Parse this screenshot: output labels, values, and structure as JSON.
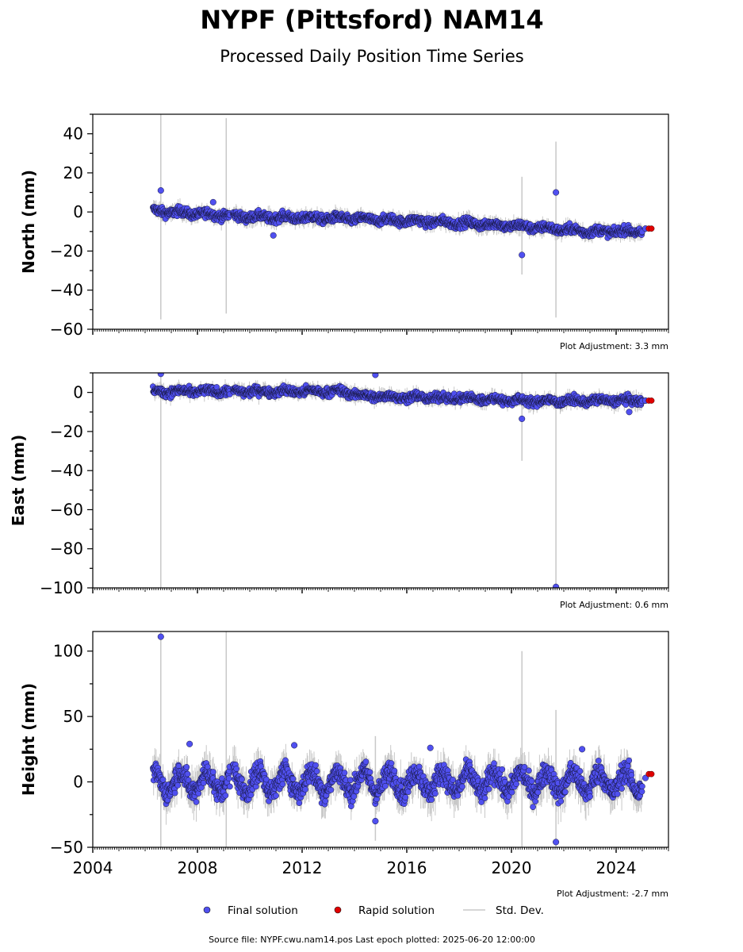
{
  "title": "NYPF (Pittsford) NAM14",
  "subtitle": "Processed Daily Position Time Series",
  "legend": {
    "final": "Final solution",
    "rapid": "Rapid solution",
    "stddev": "Std. Dev."
  },
  "footer": "Source file: NYPF.cwu.nam14.pos  Last epoch plotted: 2025-06-20 12:00:00",
  "colors": {
    "final": "#5050f0",
    "rapid": "#e00000",
    "stddev": "#c8c8c8"
  },
  "chart_data": [
    {
      "type": "scatter",
      "ylabel": "North (mm)",
      "ylim": [
        -60,
        50
      ],
      "yticks": [
        40,
        20,
        0,
        -20,
        -40,
        -60
      ],
      "xlim": [
        2004.0,
        2026.0
      ],
      "adjustment": "Plot Adjustment: 3.3 mm",
      "trend": [
        [
          2006.3,
          0.5
        ],
        [
          2010,
          -2.5
        ],
        [
          2014,
          -3.5
        ],
        [
          2017,
          -5
        ],
        [
          2020,
          -7
        ],
        [
          2023,
          -10
        ],
        [
          2025.0,
          -10
        ]
      ],
      "noise_amp": 1.6,
      "seasonal": 0.8,
      "outliers": [
        [
          2006.6,
          11
        ],
        [
          2021.7,
          10
        ],
        [
          2020.4,
          -22
        ],
        [
          2010.9,
          -12
        ],
        [
          2008.6,
          5
        ]
      ],
      "error_spikes": [
        [
          2006.6,
          0,
          55
        ],
        [
          2009.1,
          -2,
          50
        ],
        [
          2020.4,
          -7,
          25
        ],
        [
          2021.7,
          -9,
          45
        ]
      ],
      "rapid": [
        [
          2025.25,
          -8.5
        ],
        [
          2025.35,
          -8.5
        ]
      ],
      "final_end": [
        [
          2025.12,
          -8.5
        ]
      ]
    },
    {
      "type": "scatter",
      "ylabel": "East (mm)",
      "ylim": [
        -100,
        10
      ],
      "yticks": [
        0,
        -20,
        -40,
        -60,
        -80,
        -100
      ],
      "xlim": [
        2004.0,
        2026.0
      ],
      "adjustment": "Plot Adjustment: 0.6 mm",
      "trend": [
        [
          2006.3,
          0.5
        ],
        [
          2010,
          0.5
        ],
        [
          2013.5,
          0.5
        ],
        [
          2014.5,
          -2
        ],
        [
          2018,
          -3
        ],
        [
          2021,
          -4.5
        ],
        [
          2025.0,
          -4
        ]
      ],
      "noise_amp": 1.5,
      "seasonal": 0.7,
      "outliers": [
        [
          2006.6,
          9.5
        ],
        [
          2014.8,
          9
        ],
        [
          2020.4,
          -13.5
        ],
        [
          2021.7,
          -99.5
        ],
        [
          2024.5,
          -10
        ]
      ],
      "error_spikes": [
        [
          2006.6,
          0,
          115
        ],
        [
          2020.4,
          -5,
          30
        ],
        [
          2021.7,
          -5,
          100
        ]
      ],
      "rapid": [
        [
          2025.25,
          -4.2
        ],
        [
          2025.35,
          -4.2
        ]
      ],
      "final_end": [
        [
          2025.12,
          -4.2
        ]
      ]
    },
    {
      "type": "scatter",
      "ylabel": "Height (mm)",
      "ylim": [
        -50,
        115
      ],
      "yticks": [
        100,
        50,
        0,
        -50
      ],
      "xlim": [
        2004.0,
        2026.0
      ],
      "xticks": [
        "2004",
        "2008",
        "2012",
        "2016",
        "2020",
        "2024"
      ],
      "adjustment": "Plot Adjustment: -2.7 mm",
      "trend": [
        [
          2006.3,
          0
        ],
        [
          2025.0,
          0
        ]
      ],
      "noise_amp": 6,
      "seasonal": 8,
      "outliers": [
        [
          2006.6,
          111
        ],
        [
          2014.8,
          -30
        ],
        [
          2021.7,
          -46
        ],
        [
          2007.7,
          29
        ],
        [
          2011.7,
          28
        ],
        [
          2016.9,
          26
        ],
        [
          2022.7,
          25
        ]
      ],
      "error_spikes": [
        [
          2006.6,
          0,
          120
        ],
        [
          2009.1,
          0,
          120
        ],
        [
          2014.8,
          -5,
          40
        ],
        [
          2020.4,
          0,
          100
        ],
        [
          2021.7,
          -5,
          60
        ]
      ],
      "rapid": [
        [
          2025.25,
          6
        ],
        [
          2025.35,
          6
        ]
      ],
      "final_end": [
        [
          2025.12,
          3
        ]
      ]
    }
  ]
}
